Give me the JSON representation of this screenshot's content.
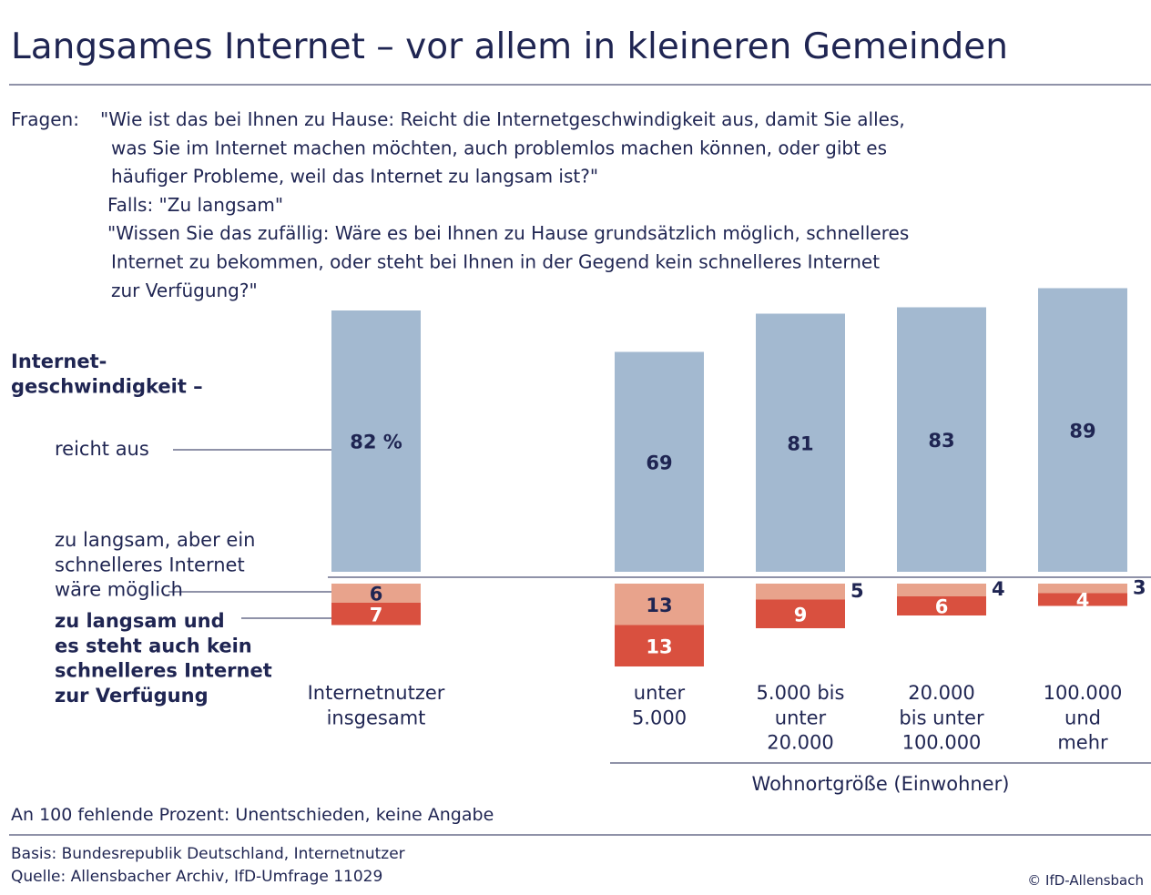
{
  "chart_data": {
    "type": "diverging-bar",
    "title": "Langsames Internet – vor allem in kleineren Gemeinden",
    "question_label": "Fragen:",
    "question_lines": [
      "\"Wie ist das bei Ihnen zu Hause: Reicht die Internetgeschwindigkeit aus, damit Sie alles,",
      "was Sie im Internet machen möchten, auch problemlos machen können, oder gibt es",
      "häufiger Probleme, weil das Internet zu langsam ist?\"",
      "Falls: \"Zu langsam\"",
      "\"Wissen Sie das zufällig: Wäre es bei Ihnen zu Hause grundsätzlich möglich, schnelleres",
      "Internet zu bekommen, oder steht bei Ihnen in der Gegend kein schnelleres Internet",
      "zur Verfügung?\""
    ],
    "legend_title": "Internet-\ngeschwindigkeit –",
    "categories": [
      "Internetnutzer\ninsgesamt",
      "unter\n5.000",
      "5.000 bis\nunter\n20.000",
      "20.000\nbis unter\n100.000",
      "100.000\nund\nmehr"
    ],
    "group_label": "Wohnortgröße (Einwohner)",
    "series": [
      {
        "name": "reicht aus",
        "color": "#a3b9d0",
        "values": [
          82,
          69,
          81,
          83,
          89
        ],
        "value_labels": [
          "82 %",
          "69",
          "81",
          "83",
          "89"
        ]
      },
      {
        "name": "zu langsam, aber ein\nschnelleres Internet\nwäre möglich",
        "color": "#e8a38c",
        "values": [
          6,
          13,
          5,
          4,
          3
        ]
      },
      {
        "name": "zu langsam und\nes steht auch kein\nschnelleres Internet\nzur Verfügung",
        "color": "#d9503f",
        "values": [
          7,
          13,
          9,
          6,
          4
        ]
      }
    ],
    "note": "An 100 fehlende Prozent: Unentschieden, keine Angabe",
    "basis": "Basis: Bundesrepublik Deutschland, Internetnutzer",
    "source": "Quelle: Allensbacher Archiv, IfD-Umfrage 11029",
    "copyright": "© IfD-Allensbach"
  }
}
